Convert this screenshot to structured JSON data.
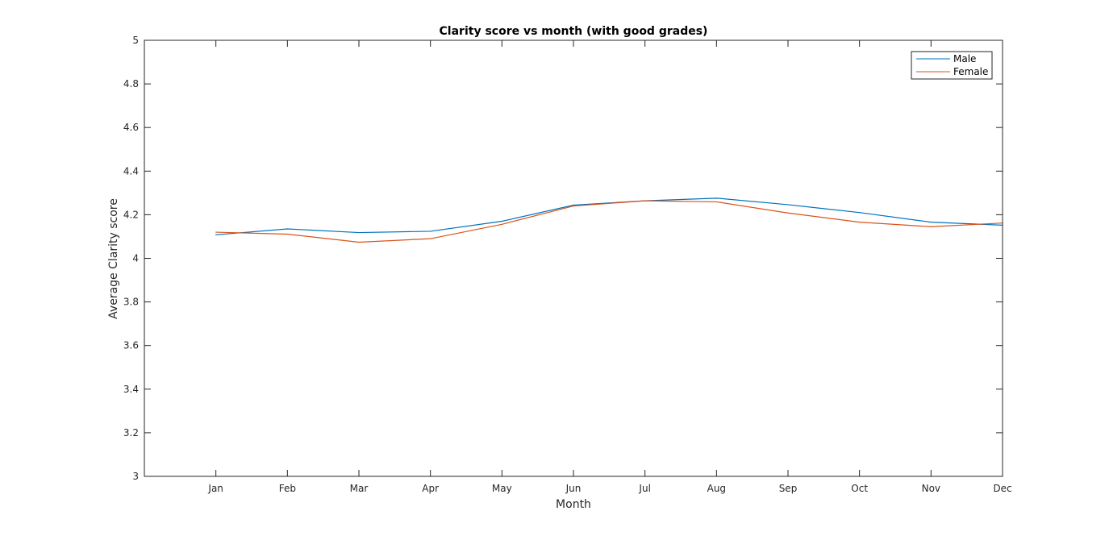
{
  "chart_data": {
    "type": "line",
    "title": "Clarity score vs month (with good grades)",
    "xlabel": "Month",
    "ylabel": "Average Clarity score",
    "categories": [
      "Jan",
      "Feb",
      "Mar",
      "Apr",
      "May",
      "Jun",
      "Jul",
      "Aug",
      "Sep",
      "Oct",
      "Nov",
      "Dec"
    ],
    "ylim": [
      3,
      5
    ],
    "yticks": [
      "3",
      "3.2",
      "3.4",
      "3.6",
      "3.8",
      "4",
      "4.2",
      "4.4",
      "4.6",
      "4.8",
      "5"
    ],
    "grid": false,
    "legend_position": "top-right",
    "series": [
      {
        "name": "Male",
        "color": "#0072BD",
        "values": [
          4.108,
          4.135,
          4.118,
          4.124,
          4.17,
          4.244,
          4.264,
          4.276,
          4.246,
          4.21,
          4.166,
          4.152
        ]
      },
      {
        "name": "Female",
        "color": "#D95319",
        "values": [
          4.12,
          4.111,
          4.074,
          4.09,
          4.156,
          4.24,
          4.264,
          4.259,
          4.208,
          4.166,
          4.145,
          4.162
        ]
      }
    ]
  }
}
